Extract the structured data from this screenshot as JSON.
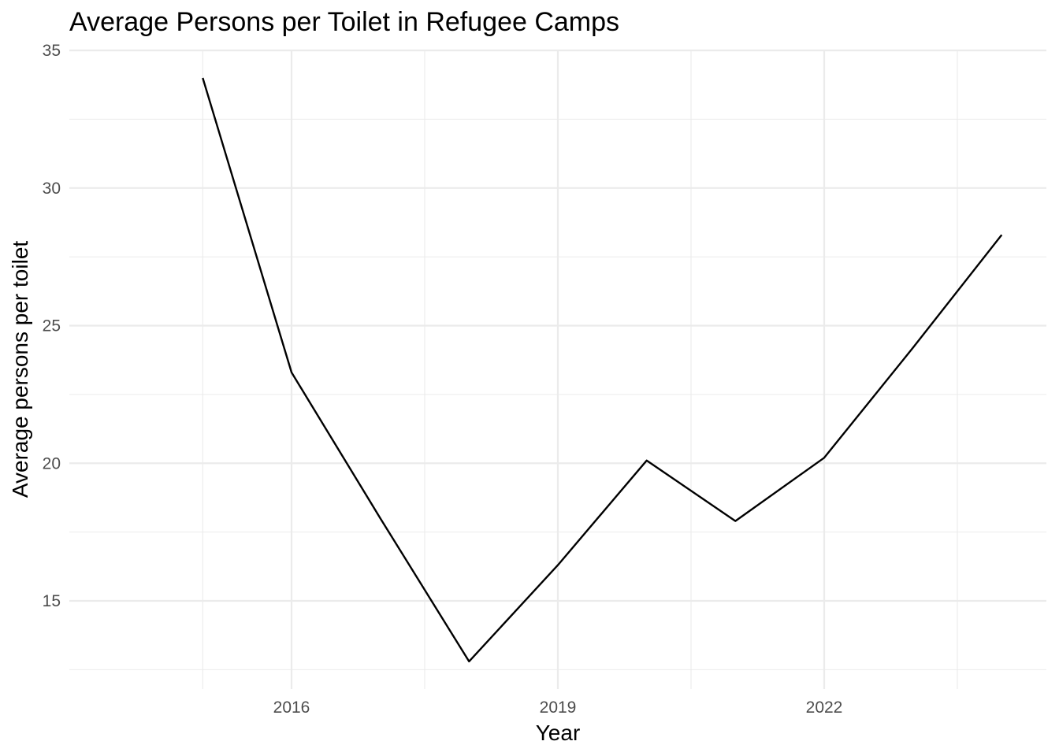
{
  "chart_data": {
    "type": "line",
    "title": "Average Persons per Toilet in Refugee Camps",
    "xlabel": "Year",
    "ylabel": "Average persons per toilet",
    "x": [
      2015,
      2016,
      2017,
      2018,
      2019,
      2020,
      2021,
      2022,
      2023,
      2024
    ],
    "series": [
      {
        "values": [
          34.0,
          23.3,
          18.0,
          12.8,
          16.3,
          20.1,
          17.9,
          20.2,
          24.2,
          28.3
        ]
      }
    ],
    "xlim": [
      2014.0,
      2025.0
    ],
    "ylim": [
      12.5,
      35.0
    ],
    "x_ticks": [
      2016,
      2019,
      2022
    ],
    "x_tick_labels": [
      "2016",
      "2019",
      "2022"
    ],
    "x_minor_ticks": [
      2015,
      2017.5,
      2020.5,
      2023.5
    ],
    "y_ticks": [
      15,
      20,
      25,
      30,
      35
    ],
    "y_tick_labels": [
      "15",
      "20",
      "25",
      "30",
      "35"
    ],
    "y_minor_ticks": [
      12.5,
      17.5,
      22.5,
      27.5,
      32.5
    ],
    "grid": true,
    "legend": "none",
    "colors": {
      "line": "#000000",
      "grid": "#ebebeb",
      "tick_text": "#4d4d4d",
      "background": "#ffffff"
    }
  }
}
